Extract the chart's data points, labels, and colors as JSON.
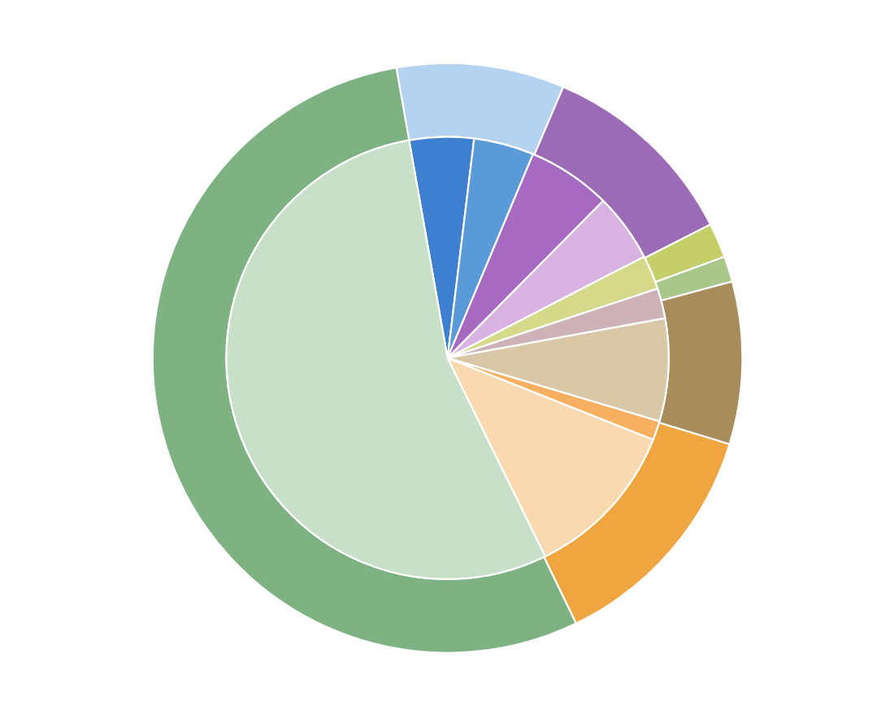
{
  "chart_data": {
    "type": "donut",
    "series": [
      {
        "values": [
          9.2,
          11.1,
          1.9,
          1.4,
          8.9,
          13.1,
          54.4
        ],
        "colors": [
          "#b3d3f0",
          "#9c6bb5",
          "#c5cf6a",
          "#a9c78a",
          "#a88c5c",
          "#f0a640",
          "#7fb283"
        ]
      },
      {
        "type": "pie",
        "values": [
          4.7,
          4.4,
          6.1,
          5.0,
          2.5,
          2.2,
          7.5,
          1.4,
          11.7,
          54.5
        ],
        "colors": [
          "#3f7fcf",
          "#5a9ad8",
          "#a66bc0",
          "#d8b2e0",
          "#d6d98a",
          "#cdb3b8",
          "#d9c8a8",
          "#f6b060",
          "#f8d9b0",
          "#c8e0c8"
        ]
      }
    ]
  }
}
